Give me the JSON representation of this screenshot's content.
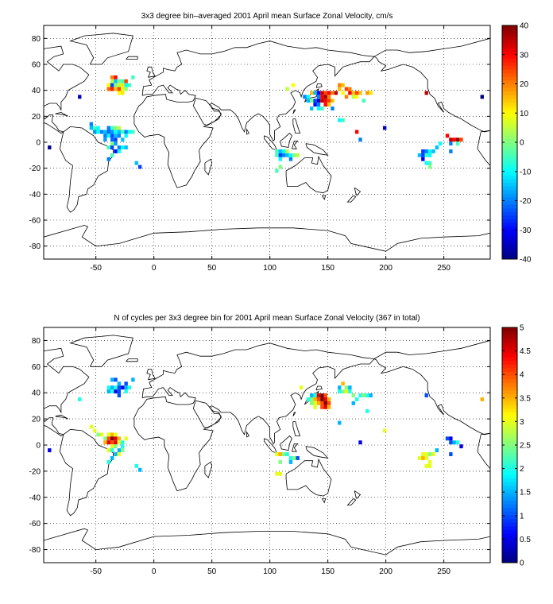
{
  "chart_data": [
    {
      "type": "heatmap",
      "title": "3x3 degree bin–averaged 2001 April mean Surface Zonal Velocity, cm/s",
      "xlim": [
        -95,
        290
      ],
      "ylim": [
        -90,
        90
      ],
      "xticks": [
        -50,
        0,
        50,
        100,
        150,
        200,
        250
      ],
      "yticks": [
        80,
        60,
        40,
        20,
        0,
        -20,
        -40,
        -60,
        -80
      ],
      "grid": true,
      "colormap": "jet",
      "colorbar": {
        "min": -40,
        "max": 40,
        "ticks": [
          40,
          30,
          20,
          10,
          0,
          -10,
          -20,
          -30,
          -40
        ]
      },
      "bin_size_deg": 3,
      "cells": [
        [
          -90,
          -4,
          -38
        ],
        [
          -64,
          35,
          -35
        ],
        [
          -36,
          50,
          20
        ],
        [
          -33,
          50,
          30
        ],
        [
          -36,
          47,
          5
        ],
        [
          -33,
          47,
          -15
        ],
        [
          -30,
          47,
          0
        ],
        [
          -27,
          47,
          -5
        ],
        [
          -24,
          47,
          25
        ],
        [
          -18,
          50,
          -5
        ],
        [
          -39,
          44,
          10
        ],
        [
          -36,
          44,
          -25
        ],
        [
          -33,
          44,
          0
        ],
        [
          -30,
          44,
          5
        ],
        [
          -27,
          44,
          12
        ],
        [
          -24,
          44,
          -10
        ],
        [
          -21,
          44,
          -5
        ],
        [
          -39,
          41,
          22
        ],
        [
          -36,
          41,
          28
        ],
        [
          -33,
          41,
          15
        ],
        [
          -30,
          41,
          25
        ],
        [
          -27,
          41,
          8
        ],
        [
          -24,
          41,
          2
        ],
        [
          -30,
          38,
          10
        ],
        [
          -27,
          38,
          12
        ],
        [
          -54,
          14,
          -20
        ],
        [
          -54,
          11,
          -15
        ],
        [
          -51,
          11,
          -5
        ],
        [
          -48,
          11,
          -10
        ],
        [
          -39,
          11,
          -20
        ],
        [
          -36,
          11,
          -5
        ],
        [
          -33,
          11,
          0
        ],
        [
          -30,
          11,
          5
        ],
        [
          -51,
          8,
          -18
        ],
        [
          -48,
          8,
          -10
        ],
        [
          -45,
          8,
          -20
        ],
        [
          -42,
          8,
          -15
        ],
        [
          -39,
          8,
          -22
        ],
        [
          -36,
          8,
          -18
        ],
        [
          -33,
          8,
          -10
        ],
        [
          -30,
          8,
          -15
        ],
        [
          -27,
          8,
          -5
        ],
        [
          -24,
          8,
          -20
        ],
        [
          -21,
          8,
          -10
        ],
        [
          -18,
          8,
          -5
        ],
        [
          -42,
          5,
          -20
        ],
        [
          -39,
          5,
          -10
        ],
        [
          -36,
          5,
          -25
        ],
        [
          -33,
          5,
          -15
        ],
        [
          -30,
          5,
          -20
        ],
        [
          -24,
          5,
          -10
        ],
        [
          -42,
          2,
          -18
        ],
        [
          -36,
          2,
          -22
        ],
        [
          -33,
          2,
          -25
        ],
        [
          -27,
          2,
          -15
        ],
        [
          -36,
          -1,
          0
        ],
        [
          -33,
          -1,
          -18
        ],
        [
          -39,
          -4,
          -5
        ],
        [
          -36,
          -4,
          -25
        ],
        [
          -30,
          -4,
          -20
        ],
        [
          -27,
          -4,
          -10
        ],
        [
          -24,
          -4,
          -15
        ],
        [
          -33,
          -7,
          -30
        ],
        [
          -30,
          -7,
          -10
        ],
        [
          -36,
          -10,
          -5
        ],
        [
          -39,
          -13,
          -20
        ],
        [
          -15,
          -16,
          -15
        ],
        [
          -12,
          -19,
          -25
        ],
        [
          115,
          41,
          5
        ],
        [
          120,
          44,
          10
        ],
        [
          130,
          35,
          -20
        ],
        [
          133,
          35,
          -10
        ],
        [
          136,
          38,
          15
        ],
        [
          139,
          38,
          -15
        ],
        [
          142,
          38,
          -30
        ],
        [
          145,
          38,
          35
        ],
        [
          148,
          38,
          25
        ],
        [
          151,
          38,
          30
        ],
        [
          154,
          38,
          20
        ],
        [
          157,
          38,
          35
        ],
        [
          133,
          32,
          -15
        ],
        [
          136,
          32,
          0
        ],
        [
          139,
          32,
          -25
        ],
        [
          142,
          32,
          -35
        ],
        [
          145,
          32,
          35
        ],
        [
          148,
          32,
          30
        ],
        [
          151,
          32,
          25
        ],
        [
          154,
          32,
          15
        ],
        [
          142,
          35,
          -20
        ],
        [
          145,
          35,
          30
        ],
        [
          148,
          35,
          38
        ],
        [
          151,
          35,
          20
        ],
        [
          139,
          29,
          -30
        ],
        [
          142,
          29,
          -20
        ],
        [
          148,
          29,
          30
        ],
        [
          151,
          29,
          15
        ],
        [
          136,
          26,
          -15
        ],
        [
          142,
          26,
          -10
        ],
        [
          145,
          26,
          -5
        ],
        [
          154,
          26,
          -20
        ],
        [
          160,
          44,
          20
        ],
        [
          163,
          44,
          15
        ],
        [
          166,
          41,
          25
        ],
        [
          169,
          41,
          20
        ],
        [
          163,
          38,
          10
        ],
        [
          169,
          38,
          30
        ],
        [
          172,
          38,
          15
        ],
        [
          175,
          38,
          25
        ],
        [
          166,
          35,
          20
        ],
        [
          172,
          35,
          5
        ],
        [
          175,
          35,
          10
        ],
        [
          178,
          38,
          15
        ],
        [
          184,
          38,
          18
        ],
        [
          187,
          38,
          12
        ],
        [
          181,
          32,
          -5
        ],
        [
          160,
          41,
          15
        ],
        [
          160,
          17,
          -10
        ],
        [
          163,
          17,
          -5
        ],
        [
          175,
          8,
          30
        ],
        [
          178,
          2,
          -20
        ],
        [
          199,
          11,
          -35
        ],
        [
          106,
          -7,
          -5
        ],
        [
          109,
          -7,
          -15
        ],
        [
          112,
          -7,
          -10
        ],
        [
          115,
          -7,
          5
        ],
        [
          106,
          -10,
          -5
        ],
        [
          109,
          -10,
          -25
        ],
        [
          112,
          -10,
          -20
        ],
        [
          115,
          -10,
          -15
        ],
        [
          118,
          -10,
          -10
        ],
        [
          121,
          -10,
          0
        ],
        [
          124,
          -10,
          5
        ],
        [
          109,
          -13,
          -10
        ],
        [
          118,
          -13,
          -20
        ],
        [
          106,
          -22,
          -5
        ],
        [
          109,
          -19,
          0
        ],
        [
          235,
          38,
          35
        ],
        [
          253,
          5,
          30
        ],
        [
          256,
          2,
          35
        ],
        [
          259,
          2,
          30
        ],
        [
          262,
          2,
          38
        ],
        [
          265,
          2,
          25
        ],
        [
          256,
          -1,
          -20
        ],
        [
          262,
          -1,
          -5
        ],
        [
          247,
          -1,
          -10
        ],
        [
          244,
          -4,
          -15
        ],
        [
          232,
          -7,
          -25
        ],
        [
          235,
          -7,
          -20
        ],
        [
          238,
          -7,
          -10
        ],
        [
          241,
          -7,
          -15
        ],
        [
          256,
          -7,
          -20
        ],
        [
          229,
          -10,
          -15
        ],
        [
          232,
          -10,
          -25
        ],
        [
          235,
          -10,
          -5
        ],
        [
          238,
          -10,
          -10
        ],
        [
          232,
          -13,
          -30
        ],
        [
          235,
          -16,
          -10
        ],
        [
          238,
          -16,
          -5
        ],
        [
          238,
          -19,
          0
        ],
        [
          283,
          35,
          -40
        ]
      ]
    },
    {
      "type": "heatmap",
      "title": "N of cycles per 3x3 degree bin for 2001 April mean Surface Zonal Velocity (367 in total)",
      "xlim": [
        -95,
        290
      ],
      "ylim": [
        -90,
        90
      ],
      "xticks": [
        -50,
        0,
        50,
        100,
        150,
        200,
        250
      ],
      "yticks": [
        80,
        60,
        40,
        20,
        0,
        -20,
        -40,
        -60,
        -80
      ],
      "grid": true,
      "colormap": "jet",
      "colorbar": {
        "min": 0,
        "max": 5,
        "ticks": [
          "5",
          "4.5",
          "4",
          "3.5",
          "3",
          "2.5",
          "2",
          "1.5",
          "1",
          "0.5",
          "0"
        ]
      },
      "bin_size_deg": 3,
      "cells": [
        [
          -90,
          -4,
          0.5
        ],
        [
          -64,
          35,
          2
        ],
        [
          -36,
          50,
          1.5
        ],
        [
          -33,
          50,
          1
        ],
        [
          -30,
          47,
          1.5
        ],
        [
          -24,
          47,
          1
        ],
        [
          -18,
          50,
          1.5
        ],
        [
          -39,
          44,
          2
        ],
        [
          -36,
          44,
          1.5
        ],
        [
          -33,
          44,
          2
        ],
        [
          -30,
          44,
          1
        ],
        [
          -27,
          44,
          0.5
        ],
        [
          -24,
          44,
          1.5
        ],
        [
          -21,
          44,
          2
        ],
        [
          -39,
          41,
          1.5
        ],
        [
          -36,
          41,
          2
        ],
        [
          -33,
          41,
          0.5
        ],
        [
          -30,
          41,
          1
        ],
        [
          -24,
          41,
          2
        ],
        [
          -30,
          38,
          1
        ],
        [
          -54,
          14,
          3
        ],
        [
          -51,
          11,
          3
        ],
        [
          -48,
          8,
          2.5
        ],
        [
          -45,
          8,
          3
        ],
        [
          -39,
          8,
          3
        ],
        [
          -36,
          8,
          3.5
        ],
        [
          -33,
          8,
          3
        ],
        [
          -42,
          5,
          2.5
        ],
        [
          -39,
          5,
          4
        ],
        [
          -36,
          5,
          5
        ],
        [
          -33,
          5,
          4.5
        ],
        [
          -30,
          5,
          3.5
        ],
        [
          -24,
          5,
          3
        ],
        [
          -42,
          2,
          3.5
        ],
        [
          -39,
          2,
          4.5
        ],
        [
          -36,
          2,
          4
        ],
        [
          -33,
          2,
          4.5
        ],
        [
          -30,
          2,
          3
        ],
        [
          -27,
          2,
          2
        ],
        [
          -36,
          -1,
          3
        ],
        [
          -33,
          -1,
          2.5
        ],
        [
          -27,
          -1,
          2
        ],
        [
          -39,
          -4,
          3
        ],
        [
          -36,
          -4,
          2
        ],
        [
          -30,
          -4,
          1.5
        ],
        [
          -27,
          -4,
          2.5
        ],
        [
          -33,
          -7,
          1.5
        ],
        [
          -30,
          -7,
          3
        ],
        [
          -36,
          -10,
          1.5
        ],
        [
          -39,
          -13,
          2
        ],
        [
          -15,
          -16,
          2
        ],
        [
          -12,
          -19,
          1.5
        ],
        [
          127,
          44,
          3
        ],
        [
          136,
          38,
          1.5
        ],
        [
          139,
          38,
          2
        ],
        [
          142,
          38,
          4.5
        ],
        [
          145,
          38,
          5
        ],
        [
          148,
          38,
          4
        ],
        [
          133,
          35,
          2
        ],
        [
          136,
          35,
          2.5
        ],
        [
          139,
          35,
          3.5
        ],
        [
          142,
          35,
          4
        ],
        [
          145,
          35,
          5
        ],
        [
          148,
          35,
          4.5
        ],
        [
          151,
          35,
          3.5
        ],
        [
          136,
          32,
          2.5
        ],
        [
          139,
          32,
          3
        ],
        [
          142,
          32,
          3.5
        ],
        [
          145,
          32,
          4
        ],
        [
          148,
          32,
          5
        ],
        [
          151,
          32,
          4
        ],
        [
          139,
          29,
          3
        ],
        [
          145,
          29,
          4
        ],
        [
          148,
          29,
          4.5
        ],
        [
          151,
          29,
          3.5
        ],
        [
          160,
          44,
          1.5
        ],
        [
          163,
          47,
          3.5
        ],
        [
          166,
          44,
          2.5
        ],
        [
          169,
          44,
          1.5
        ],
        [
          160,
          41,
          2
        ],
        [
          163,
          41,
          2.5
        ],
        [
          166,
          41,
          3
        ],
        [
          169,
          41,
          2
        ],
        [
          172,
          38,
          2.5
        ],
        [
          178,
          38,
          2
        ],
        [
          181,
          38,
          2.5
        ],
        [
          184,
          38,
          2
        ],
        [
          187,
          38,
          1.5
        ],
        [
          175,
          35,
          2
        ],
        [
          172,
          32,
          1.5
        ],
        [
          184,
          26,
          2
        ],
        [
          160,
          17,
          1.5
        ],
        [
          178,
          2,
          0.5
        ],
        [
          199,
          11,
          3
        ],
        [
          106,
          -7,
          3
        ],
        [
          109,
          -7,
          3.5
        ],
        [
          112,
          -7,
          2.5
        ],
        [
          115,
          -7,
          2
        ],
        [
          118,
          -10,
          2
        ],
        [
          121,
          -10,
          2.5
        ],
        [
          124,
          -10,
          1
        ],
        [
          109,
          -13,
          2.5
        ],
        [
          118,
          -13,
          1.5
        ],
        [
          106,
          -22,
          3
        ],
        [
          109,
          -22,
          3
        ],
        [
          235,
          38,
          1
        ],
        [
          253,
          5,
          1
        ],
        [
          256,
          5,
          0.5
        ],
        [
          256,
          2,
          1
        ],
        [
          259,
          2,
          1.5
        ],
        [
          262,
          2,
          2
        ],
        [
          265,
          -1,
          0.5
        ],
        [
          244,
          -4,
          1.5
        ],
        [
          232,
          -7,
          3
        ],
        [
          235,
          -7,
          3
        ],
        [
          238,
          -7,
          2.5
        ],
        [
          241,
          -7,
          3
        ],
        [
          256,
          -7,
          1
        ],
        [
          229,
          -10,
          3
        ],
        [
          232,
          -10,
          3.5
        ],
        [
          235,
          -10,
          3
        ],
        [
          238,
          -13,
          3
        ],
        [
          235,
          -16,
          3
        ],
        [
          238,
          -16,
          3
        ],
        [
          283,
          35,
          3.5
        ]
      ]
    }
  ]
}
